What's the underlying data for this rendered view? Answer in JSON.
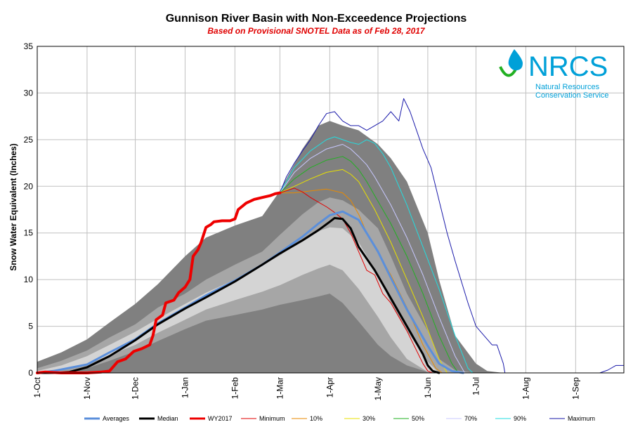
{
  "chart_data": {
    "type": "area",
    "title": "Gunnison River Basin with Non-Exceedence Projections",
    "subtitle": "Based on Provisional SNOTEL Data as of Feb 28, 2017",
    "xlabel": "",
    "ylabel": "Snow Water Equivalent (Inches)",
    "ylim": [
      0,
      35
    ],
    "yticks": [
      0,
      5,
      10,
      15,
      20,
      25,
      30,
      35
    ],
    "x_tick_labels": [
      "1-Oct",
      "1-Nov",
      "1-Dec",
      "1-Jan",
      "1-Feb",
      "1-Mar",
      "1-Apr",
      "1-May",
      "1-Jun",
      "1-Jul",
      "1-Aug",
      "1-Sep"
    ],
    "x_tick_days": [
      0,
      31,
      61,
      92,
      123,
      151,
      182,
      212,
      243,
      273,
      304,
      335
    ],
    "x_range_days": [
      0,
      365
    ],
    "grid": true,
    "legend_position": "bottom",
    "bands": [
      {
        "name": "outer",
        "color": "#808080",
        "x": [
          0,
          15,
          31,
          45,
          61,
          75,
          92,
          105,
          123,
          140,
          151,
          165,
          175,
          182,
          190,
          200,
          212,
          220,
          230,
          243,
          250,
          260,
          273,
          280,
          290
        ],
        "upper": [
          1.2,
          2.2,
          3.6,
          5.4,
          7.4,
          9.5,
          12.5,
          14.5,
          15.8,
          16.8,
          19.5,
          24.0,
          26.5,
          27.0,
          26.5,
          26.0,
          24.5,
          23.0,
          20.5,
          15.0,
          10.0,
          4.0,
          1.0,
          0.2,
          0
        ],
        "lower": [
          0,
          0,
          0,
          0,
          0,
          0,
          0,
          0,
          0,
          0,
          0,
          0,
          0,
          0,
          0,
          0,
          0,
          0,
          0,
          0,
          0,
          0,
          0,
          0,
          0
        ]
      },
      {
        "name": "mid",
        "color": "#a6a6a6",
        "x": [
          0,
          15,
          31,
          45,
          61,
          75,
          92,
          105,
          123,
          140,
          151,
          165,
          175,
          182,
          190,
          200,
          212,
          220,
          230,
          243,
          250,
          260,
          273
        ],
        "upper": [
          0.5,
          1.3,
          2.4,
          3.8,
          5.2,
          7.0,
          8.5,
          10.0,
          11.6,
          13.0,
          14.8,
          17.0,
          18.3,
          18.8,
          18.5,
          17.5,
          15.5,
          12.5,
          8.5,
          4.5,
          1.5,
          0.3,
          0
        ],
        "lower": [
          0,
          0.1,
          0.5,
          1.3,
          2.3,
          3.4,
          4.7,
          5.6,
          6.2,
          6.8,
          7.3,
          7.8,
          8.2,
          8.5,
          7.5,
          5.5,
          3.0,
          1.8,
          0.8,
          0.1,
          0,
          0,
          0
        ]
      },
      {
        "name": "inner",
        "color": "#d4d4d4",
        "x": [
          0,
          15,
          31,
          45,
          61,
          75,
          92,
          105,
          123,
          140,
          151,
          165,
          175,
          182,
          190,
          200,
          212,
          220,
          230,
          243,
          250
        ],
        "upper": [
          0.2,
          0.8,
          1.8,
          3.0,
          4.4,
          5.8,
          7.4,
          8.6,
          10.0,
          11.5,
          12.6,
          14.2,
          15.2,
          15.6,
          15.5,
          14.0,
          10.5,
          7.5,
          4.5,
          1.2,
          0
        ],
        "lower": [
          0,
          0.3,
          0.9,
          1.9,
          3.0,
          4.3,
          5.7,
          6.8,
          7.8,
          8.7,
          9.4,
          10.5,
          11.2,
          11.6,
          11.0,
          9.0,
          6.0,
          3.8,
          1.5,
          0.1,
          0
        ]
      }
    ],
    "series": [
      {
        "name": "Averages",
        "color": "#5b8fdb",
        "width": 3,
        "x": [
          0,
          10,
          31,
          45,
          61,
          75,
          92,
          105,
          123,
          140,
          151,
          165,
          175,
          182,
          190,
          200,
          212,
          220,
          230,
          243,
          250,
          258,
          265
        ],
        "y": [
          0,
          0.2,
          0.9,
          2.2,
          3.6,
          5.3,
          7.0,
          8.3,
          9.9,
          11.6,
          12.9,
          14.6,
          16.0,
          16.9,
          17.3,
          16.4,
          13.0,
          10.2,
          6.8,
          2.9,
          1.0,
          0.2,
          0
        ]
      },
      {
        "name": "Median",
        "color": "#000000",
        "width": 3,
        "x": [
          0,
          10,
          20,
          31,
          45,
          61,
          75,
          92,
          105,
          123,
          140,
          151,
          165,
          175,
          182,
          185,
          190,
          195,
          200,
          210,
          220,
          230,
          240,
          243,
          246,
          250
        ],
        "y": [
          0,
          0,
          0.1,
          0.6,
          1.8,
          3.5,
          5.2,
          6.9,
          8.1,
          9.8,
          11.6,
          12.8,
          14.2,
          15.3,
          16.2,
          16.6,
          16.5,
          15.5,
          13.5,
          11.0,
          8.0,
          5.0,
          2.0,
          0.8,
          0.2,
          0
        ]
      },
      {
        "name": "WY2017",
        "color": "#ee0000",
        "width": 4,
        "x": [
          0,
          5,
          15,
          31,
          40,
          45,
          50,
          55,
          60,
          65,
          70,
          72,
          74,
          78,
          80,
          85,
          88,
          92,
          95,
          97,
          100,
          102,
          105,
          108,
          110,
          115,
          120,
          123,
          125,
          130,
          135,
          140,
          145,
          148,
          151
        ],
        "y": [
          0,
          0.1,
          0,
          0,
          0.1,
          0.2,
          1.2,
          1.5,
          2.3,
          2.6,
          3.0,
          4.0,
          5.7,
          6.2,
          7.5,
          7.8,
          8.6,
          9.2,
          10.0,
          12.5,
          13.2,
          14.0,
          15.6,
          15.9,
          16.2,
          16.3,
          16.3,
          16.5,
          17.5,
          18.2,
          18.6,
          18.8,
          19.0,
          19.2,
          19.3
        ]
      },
      {
        "name": "Minimum",
        "color": "#e00000",
        "width": 1,
        "x": [
          151,
          160,
          165,
          170,
          175,
          180,
          185,
          190,
          195,
          200,
          205,
          210,
          215,
          220,
          230,
          240,
          243,
          246
        ],
        "y": [
          19.3,
          19.8,
          19.4,
          18.8,
          18.3,
          17.8,
          17.2,
          16.5,
          15.0,
          13.0,
          11.0,
          10.5,
          8.5,
          7.5,
          4.5,
          1.0,
          0.2,
          0
        ]
      },
      {
        "name": "10%",
        "color": "#e88a00",
        "width": 1,
        "x": [
          151,
          160,
          170,
          180,
          190,
          195,
          200,
          205,
          210,
          215,
          220,
          230,
          240,
          248,
          252
        ],
        "y": [
          19.3,
          19.3,
          19.5,
          19.7,
          19.3,
          18.5,
          17.0,
          15.0,
          13.5,
          12.0,
          10.5,
          7.0,
          3.0,
          0.5,
          0
        ]
      },
      {
        "name": "30%",
        "color": "#e8e000",
        "width": 1,
        "x": [
          151,
          160,
          170,
          180,
          190,
          195,
          200,
          205,
          210,
          220,
          230,
          240,
          250,
          255
        ],
        "y": [
          19.3,
          20.0,
          20.8,
          21.5,
          21.8,
          21.3,
          20.5,
          19.0,
          17.5,
          14.0,
          10.0,
          6.0,
          1.5,
          0
        ]
      },
      {
        "name": "50%",
        "color": "#22b022",
        "width": 1,
        "x": [
          151,
          160,
          170,
          180,
          190,
          195,
          200,
          205,
          210,
          220,
          230,
          240,
          250,
          258,
          262
        ],
        "y": [
          19.3,
          20.8,
          22.0,
          22.8,
          23.2,
          22.7,
          21.8,
          20.5,
          19.0,
          16.0,
          12.5,
          8.5,
          4.0,
          1.0,
          0
        ]
      },
      {
        "name": "70%",
        "color": "#c8c8ff",
        "width": 1,
        "x": [
          151,
          160,
          170,
          180,
          190,
          195,
          200,
          205,
          210,
          220,
          230,
          240,
          250,
          260,
          266
        ],
        "y": [
          19.3,
          21.5,
          23.0,
          24.0,
          24.5,
          24.0,
          23.2,
          22.3,
          21.0,
          18.0,
          14.5,
          10.5,
          6.0,
          1.8,
          0
        ]
      },
      {
        "name": "90%",
        "color": "#22dde0",
        "width": 1,
        "x": [
          151,
          160,
          170,
          180,
          185,
          190,
          195,
          200,
          205,
          210,
          215,
          220,
          230,
          240,
          250,
          260,
          268,
          271
        ],
        "y": [
          19.3,
          22.0,
          23.8,
          25.0,
          25.3,
          25.0,
          24.7,
          24.5,
          25.0,
          24.6,
          23.5,
          22.0,
          18.0,
          13.5,
          9.0,
          4.0,
          0.5,
          0
        ]
      },
      {
        "name": "Maximum",
        "color": "#1a1aaa",
        "width": 1,
        "x": [
          151,
          155,
          160,
          165,
          170,
          175,
          180,
          185,
          190,
          195,
          200,
          205,
          210,
          215,
          220,
          225,
          228,
          232,
          236,
          240,
          245,
          250,
          255,
          260,
          268,
          273,
          278,
          283,
          286,
          290,
          291,
          350,
          355,
          360,
          365
        ],
        "y": [
          19.3,
          21.0,
          22.5,
          23.8,
          25.0,
          26.5,
          27.8,
          28.0,
          27.0,
          26.5,
          26.5,
          26.0,
          26.5,
          27.0,
          28.0,
          27.0,
          29.4,
          28.0,
          26.0,
          24.0,
          22.0,
          18.5,
          15.0,
          12.0,
          7.5,
          5.0,
          4.0,
          3.0,
          3.0,
          1.0,
          0,
          0,
          0.3,
          0.8,
          0.8
        ]
      }
    ]
  },
  "logo": {
    "wordmark": "NRCS",
    "line1": "Natural Resources",
    "line2": "Conservation Service"
  }
}
